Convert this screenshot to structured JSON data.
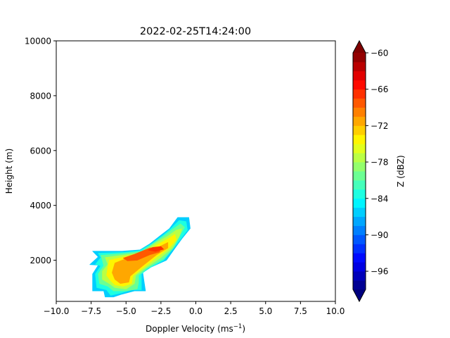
{
  "chart_data": {
    "type": "heatmap",
    "title": "2022-02-25T14:24:00",
    "xlabel": "Doppler Velocity (ms",
    "xlabel_sup": "−1",
    "xlabel_end": ")",
    "ylabel": "Height (m)",
    "xlim": [
      -10,
      10
    ],
    "ylim": [
      500,
      10000
    ],
    "xticks": [
      "−10.0",
      "−7.5",
      "−5.0",
      "−2.5",
      "0.0",
      "2.5",
      "5.0",
      "7.5",
      "10.0"
    ],
    "xtick_values": [
      -10,
      -7.5,
      -5,
      -2.5,
      0,
      2.5,
      5,
      7.5,
      10
    ],
    "yticks": [
      "2000",
      "4000",
      "6000",
      "8000",
      "10000"
    ],
    "ytick_values": [
      2000,
      4000,
      6000,
      8000,
      10000
    ],
    "colorbar": {
      "label": "Z (dBZ)",
      "min": -99,
      "max": -60,
      "step": 1.5,
      "ticks": [
        "−60",
        "−66",
        "−72",
        "−78",
        "−84",
        "−90",
        "−96"
      ],
      "tick_values": [
        -60,
        -66,
        -72,
        -78,
        -84,
        -90,
        -96
      ],
      "extend": "both"
    },
    "contours": [
      {
        "level": -87,
        "polygon": [
          [
            -7.4,
            2330
          ],
          [
            -5.3,
            2330
          ],
          [
            -4.0,
            2380
          ],
          [
            -3.3,
            2600
          ],
          [
            -2.4,
            2960
          ],
          [
            -1.9,
            3150
          ],
          [
            -1.3,
            3560
          ],
          [
            -0.5,
            3560
          ],
          [
            -0.4,
            3160
          ],
          [
            -1.0,
            2780
          ],
          [
            -1.5,
            2430
          ],
          [
            -2.1,
            2000
          ],
          [
            -3.2,
            1750
          ],
          [
            -3.8,
            1550
          ],
          [
            -3.7,
            1200
          ],
          [
            -3.6,
            880
          ],
          [
            -4.4,
            880
          ],
          [
            -5.3,
            760
          ],
          [
            -5.9,
            660
          ],
          [
            -6.5,
            660
          ],
          [
            -6.6,
            880
          ],
          [
            -7.4,
            880
          ],
          [
            -7.4,
            1500
          ],
          [
            -7.0,
            1820
          ],
          [
            -7.6,
            1840
          ],
          [
            -7.0,
            2120
          ]
        ]
      },
      {
        "level": -84,
        "polygon": [
          [
            -7.0,
            2260
          ],
          [
            -5.1,
            2290
          ],
          [
            -4.0,
            2350
          ],
          [
            -3.1,
            2620
          ],
          [
            -2.3,
            2930
          ],
          [
            -1.8,
            3150
          ],
          [
            -1.2,
            3450
          ],
          [
            -0.7,
            3410
          ],
          [
            -0.6,
            3100
          ],
          [
            -1.2,
            2700
          ],
          [
            -1.7,
            2380
          ],
          [
            -2.3,
            2000
          ],
          [
            -3.4,
            1700
          ],
          [
            -3.9,
            1500
          ],
          [
            -3.9,
            1200
          ],
          [
            -3.9,
            920
          ],
          [
            -4.6,
            920
          ],
          [
            -5.4,
            800
          ],
          [
            -6.1,
            720
          ],
          [
            -6.4,
            920
          ],
          [
            -7.1,
            1000
          ],
          [
            -7.2,
            1500
          ],
          [
            -6.8,
            1800
          ],
          [
            -7.2,
            1850
          ],
          [
            -6.8,
            2100
          ]
        ]
      },
      {
        "level": -81,
        "polygon": [
          [
            -6.8,
            2180
          ],
          [
            -5.1,
            2250
          ],
          [
            -3.9,
            2320
          ],
          [
            -3.0,
            2630
          ],
          [
            -2.2,
            2920
          ],
          [
            -1.6,
            3150
          ],
          [
            -1.1,
            3330
          ],
          [
            -0.8,
            3200
          ],
          [
            -1.2,
            2850
          ],
          [
            -1.6,
            2450
          ],
          [
            -2.3,
            2050
          ],
          [
            -3.5,
            1700
          ],
          [
            -4.1,
            1450
          ],
          [
            -4.1,
            1180
          ],
          [
            -4.2,
            950
          ],
          [
            -5.0,
            880
          ],
          [
            -5.9,
            880
          ],
          [
            -6.3,
            1050
          ],
          [
            -6.9,
            1150
          ],
          [
            -7.0,
            1500
          ],
          [
            -6.6,
            1800
          ],
          [
            -6.7,
            2000
          ]
        ]
      },
      {
        "level": -78,
        "polygon": [
          [
            -6.5,
            2100
          ],
          [
            -5.0,
            2200
          ],
          [
            -3.8,
            2280
          ],
          [
            -2.9,
            2620
          ],
          [
            -2.0,
            2880
          ],
          [
            -1.4,
            3100
          ],
          [
            -1.0,
            3150
          ],
          [
            -1.2,
            2850
          ],
          [
            -1.7,
            2450
          ],
          [
            -2.5,
            2100
          ],
          [
            -3.6,
            1720
          ],
          [
            -4.3,
            1450
          ],
          [
            -4.4,
            1150
          ],
          [
            -5.0,
            950
          ],
          [
            -5.8,
            1000
          ],
          [
            -6.2,
            1150
          ],
          [
            -6.7,
            1300
          ],
          [
            -6.7,
            1600
          ],
          [
            -6.3,
            1850
          ]
        ]
      },
      {
        "level": -75,
        "polygon": [
          [
            -6.2,
            2000
          ],
          [
            -4.9,
            2150
          ],
          [
            -3.7,
            2230
          ],
          [
            -2.8,
            2560
          ],
          [
            -2.0,
            2780
          ],
          [
            -1.5,
            2950
          ],
          [
            -1.4,
            2750
          ],
          [
            -1.9,
            2450
          ],
          [
            -2.7,
            2150
          ],
          [
            -3.7,
            1750
          ],
          [
            -4.5,
            1430
          ],
          [
            -4.6,
            1150
          ],
          [
            -5.2,
            1050
          ],
          [
            -5.8,
            1100
          ],
          [
            -6.1,
            1250
          ],
          [
            -6.4,
            1450
          ],
          [
            -6.3,
            1750
          ]
        ]
      },
      {
        "level": -72,
        "polygon": [
          [
            -5.8,
            1900
          ],
          [
            -4.8,
            2100
          ],
          [
            -3.6,
            2200
          ],
          [
            -2.6,
            2500
          ],
          [
            -2.0,
            2650
          ],
          [
            -2.0,
            2450
          ],
          [
            -2.8,
            2200
          ],
          [
            -3.8,
            1800
          ],
          [
            -4.7,
            1420
          ],
          [
            -4.8,
            1200
          ],
          [
            -5.4,
            1150
          ],
          [
            -5.8,
            1300
          ],
          [
            -6.0,
            1550
          ]
        ]
      },
      {
        "level": -69,
        "polygon": [
          [
            -5.2,
            2080
          ],
          [
            -4.4,
            2220
          ],
          [
            -3.3,
            2450
          ],
          [
            -2.5,
            2480
          ],
          [
            -2.6,
            2300
          ],
          [
            -3.3,
            2200
          ],
          [
            -4.2,
            2000
          ],
          [
            -4.9,
            1980
          ]
        ]
      },
      {
        "level": -67.5,
        "polygon": [
          [
            -3.1,
            2470
          ],
          [
            -2.5,
            2500
          ],
          [
            -2.3,
            2400
          ],
          [
            -2.9,
            2320
          ],
          [
            -3.4,
            2370
          ]
        ]
      }
    ]
  }
}
